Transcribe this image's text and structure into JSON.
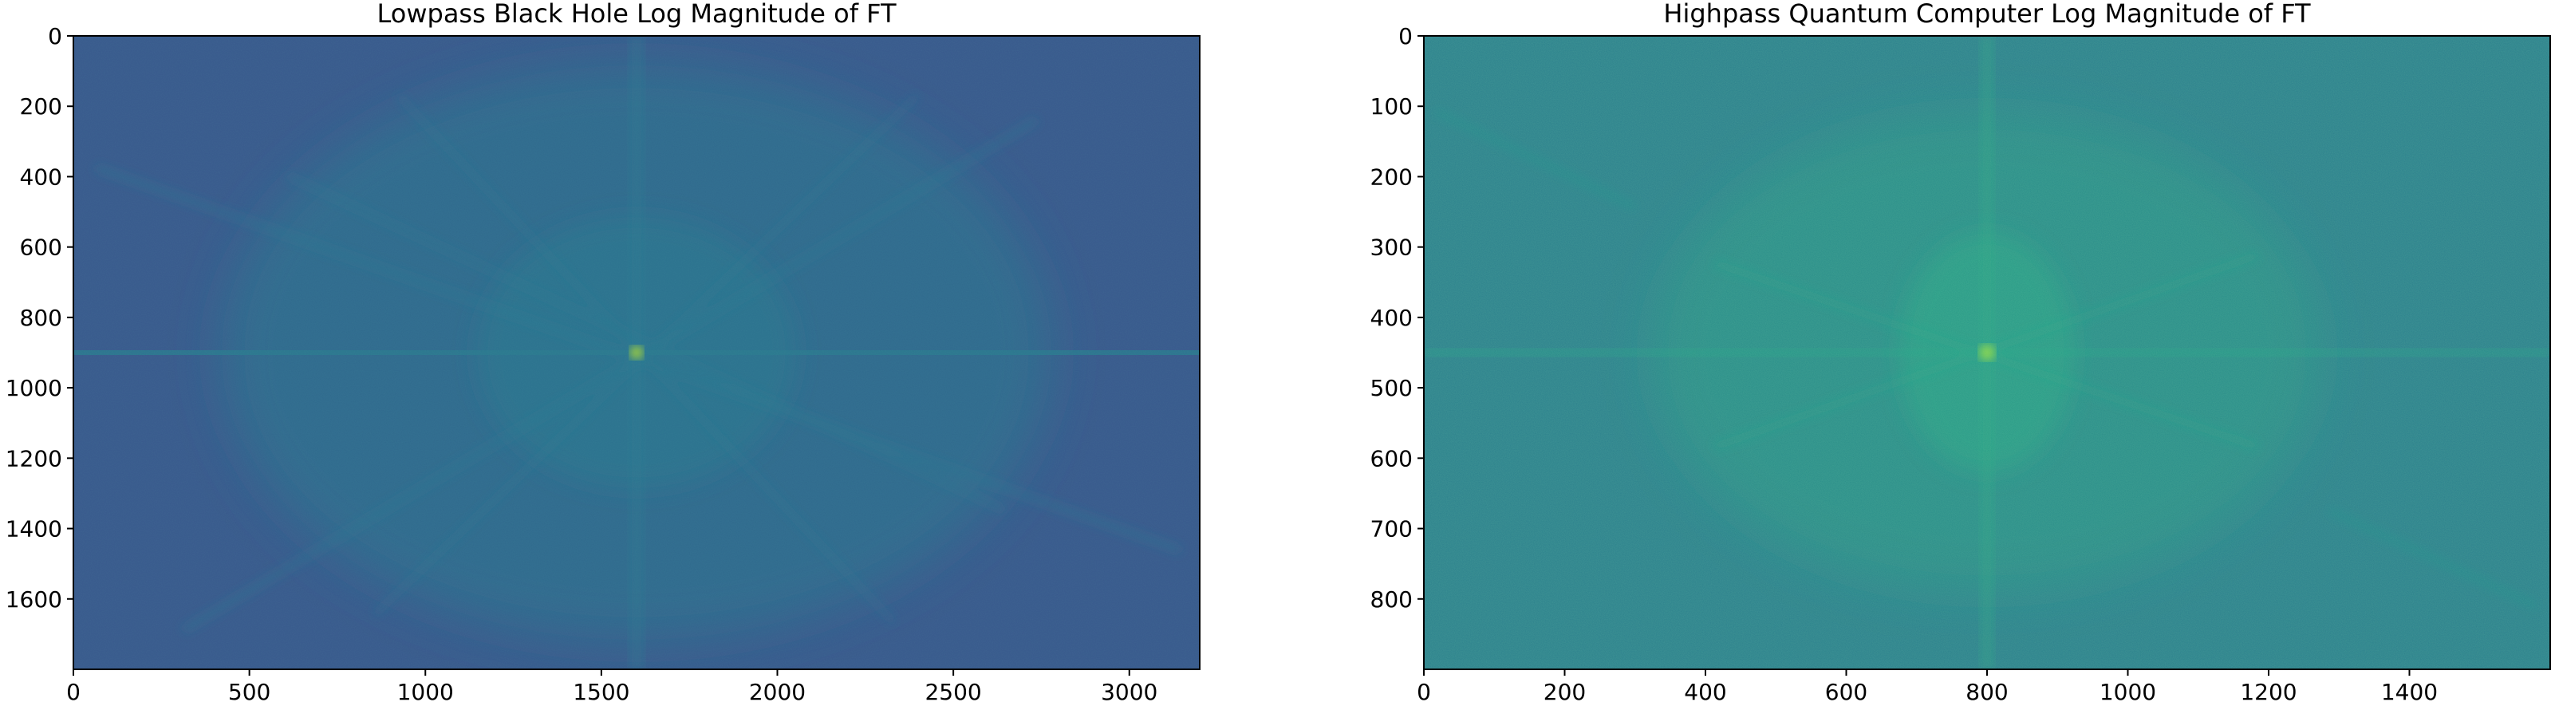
{
  "chart_data": [
    {
      "type": "heatmap",
      "title": "Lowpass Black Hole Log Magnitude of FT",
      "xlabel": "",
      "ylabel": "",
      "xlim": [
        0,
        3200
      ],
      "ylim": [
        1800,
        0
      ],
      "xticks": [
        0,
        500,
        1000,
        1500,
        2000,
        2500,
        3000
      ],
      "yticks": [
        0,
        200,
        400,
        600,
        800,
        1000,
        1200,
        1400,
        1600
      ],
      "xtick_labels": [
        "0",
        "500",
        "1000",
        "1500",
        "2000",
        "2500",
        "3000"
      ],
      "ytick_labels": [
        "0",
        "200",
        "400",
        "600",
        "800",
        "1000",
        "1200",
        "1400",
        "1600"
      ],
      "colormap": "viridis",
      "center": [
        1600,
        900
      ],
      "background_color": "#38588c",
      "mid_color": "#2a788e",
      "peak_color": "#b5de2b",
      "grid": false
    },
    {
      "type": "heatmap",
      "title": "Highpass Quantum Computer Log Magnitude of FT",
      "xlabel": "",
      "ylabel": "",
      "xlim": [
        0,
        1600
      ],
      "ylim": [
        900,
        0
      ],
      "xticks": [
        0,
        200,
        400,
        600,
        800,
        1000,
        1200,
        1400
      ],
      "yticks": [
        0,
        100,
        200,
        300,
        400,
        500,
        600,
        700,
        800
      ],
      "xtick_labels": [
        "0",
        "200",
        "400",
        "600",
        "800",
        "1000",
        "1200",
        "1400"
      ],
      "ytick_labels": [
        "0",
        "100",
        "200",
        "300",
        "400",
        "500",
        "600",
        "700",
        "800"
      ],
      "colormap": "viridis",
      "center": [
        800,
        450
      ],
      "background_color": "#2b7f8c",
      "mid_color": "#25a585",
      "peak_color": "#8fd744",
      "grid": false
    }
  ]
}
